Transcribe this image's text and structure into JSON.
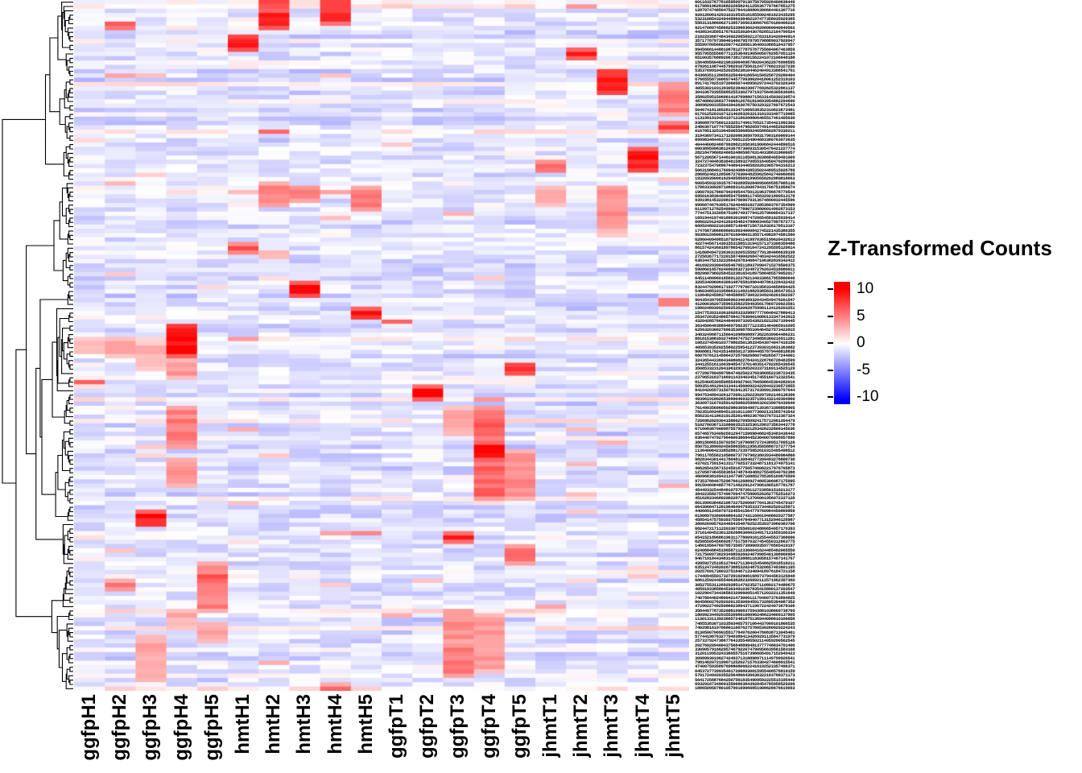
{
  "chart_data": {
    "type": "heatmap",
    "title": "",
    "legend": {
      "title": "Z-Transformed Counts",
      "ticks": [
        10,
        5,
        0,
        -5,
        -10
      ],
      "range": [
        -10,
        10
      ],
      "color_max": "#FF0000",
      "color_mid": "#FFFFFF",
      "color_min": "#0000FF"
    },
    "columns": [
      "ggfpH1",
      "ggfpH2",
      "ggfpH3",
      "ggfpH4",
      "ggfpH5",
      "hmtH1",
      "hmtH2",
      "hmtH3",
      "hmtH4",
      "hmtH5",
      "ggfpT1",
      "ggfpT2",
      "ggfpT3",
      "ggfpT4",
      "ggfpT5",
      "jhmtT1",
      "jhmtT2",
      "jhmtT3",
      "jhmtT4",
      "jhmtT5"
    ],
    "rows": {
      "count": 160,
      "labels_legible": false
    },
    "dendrogram": {
      "side": "left"
    },
    "baseline": {
      "mean": -1.2,
      "row_spread": 1.4,
      "cell_spread": 1.15,
      "speckle_prob": 0.02
    },
    "hotspots": [
      [
        6,
        0.0,
        0.014,
        10
      ],
      [
        6,
        0.014,
        0.041,
        8.5
      ],
      [
        8,
        0.0,
        0.035,
        9
      ],
      [
        1,
        0.033,
        0.044,
        8
      ],
      [
        5,
        0.049,
        0.072,
        9.5
      ],
      [
        16,
        0.066,
        0.085,
        8.5
      ],
      [
        17,
        0.098,
        0.138,
        9
      ],
      [
        19,
        0.117,
        0.169,
        5
      ],
      [
        19,
        0.172,
        0.196,
        7.5
      ],
      [
        18,
        0.213,
        0.248,
        9
      ],
      [
        15,
        0.23,
        0.251,
        7
      ],
      [
        6,
        0.262,
        0.301,
        4.5
      ],
      [
        7,
        0.266,
        0.294,
        5
      ],
      [
        9,
        0.27,
        0.305,
        5
      ],
      [
        8,
        0.275,
        0.284,
        5.5
      ],
      [
        17,
        0.268,
        0.338,
        4.5
      ],
      [
        15,
        0.268,
        0.3,
        3
      ],
      [
        5,
        0.35,
        0.368,
        6.5
      ],
      [
        6,
        0.361,
        0.373,
        4
      ],
      [
        7,
        0.406,
        0.429,
        9.5
      ],
      [
        19,
        0.43,
        0.443,
        8
      ],
      [
        9,
        0.446,
        0.465,
        9.5
      ],
      [
        10,
        0.46,
        0.47,
        8
      ],
      [
        3,
        0.47,
        0.516,
        9.5
      ],
      [
        0,
        0.487,
        0.513,
        3
      ],
      [
        1,
        0.487,
        0.516,
        3.5
      ],
      [
        2,
        0.495,
        0.536,
        3
      ],
      [
        3,
        0.516,
        0.548,
        4
      ],
      [
        14,
        0.527,
        0.545,
        9
      ],
      [
        0,
        0.548,
        0.556,
        8
      ],
      [
        11,
        0.557,
        0.583,
        9.5
      ],
      [
        3,
        0.589,
        0.653,
        5
      ],
      [
        13,
        0.589,
        0.635,
        6
      ],
      [
        13,
        0.635,
        0.67,
        9.5
      ],
      [
        13,
        0.67,
        0.728,
        6
      ],
      [
        14,
        0.653,
        0.723,
        4.5
      ],
      [
        12,
        0.589,
        0.629,
        3.5
      ],
      [
        3,
        0.664,
        0.705,
        4.5
      ],
      [
        2,
        0.738,
        0.764,
        9.5
      ],
      [
        12,
        0.769,
        0.789,
        9
      ],
      [
        14,
        0.79,
        0.816,
        6
      ],
      [
        4,
        0.813,
        0.888,
        5
      ],
      [
        4,
        0.827,
        0.848,
        6.5
      ],
      [
        1,
        0.839,
        0.854,
        5
      ],
      [
        3,
        0.88,
        0.903,
        4
      ],
      [
        12,
        0.88,
        0.932,
        4.5
      ],
      [
        13,
        0.886,
        0.973,
        4
      ],
      [
        12,
        0.932,
        0.979,
        5
      ],
      [
        2,
        0.921,
        0.985,
        3.5
      ],
      [
        4,
        0.897,
        0.932,
        3.5
      ]
    ]
  }
}
